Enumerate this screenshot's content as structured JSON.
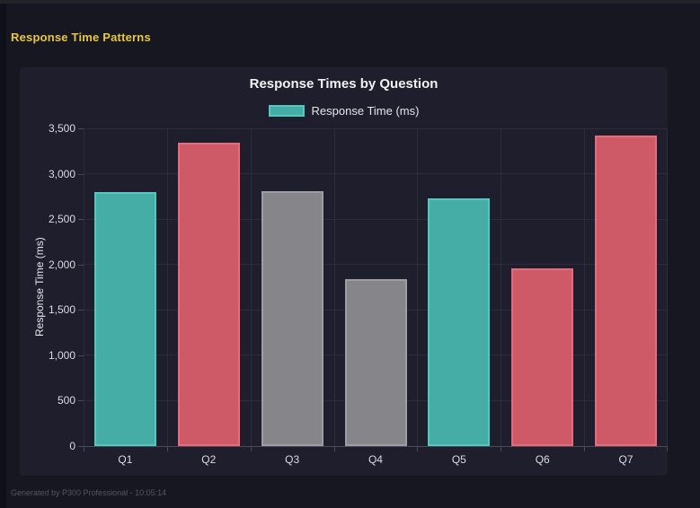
{
  "header": {
    "title": "Response Time Patterns"
  },
  "chart": {
    "title": "Response Times by Question",
    "legend": {
      "label": "Response Time (ms)"
    }
  },
  "chart_data": {
    "type": "bar",
    "title": "Response Times by Question",
    "categories": [
      "Q1",
      "Q2",
      "Q3",
      "Q4",
      "Q5",
      "Q6",
      "Q7"
    ],
    "series": [
      {
        "name": "Response Time (ms)",
        "values": [
          2800,
          3340,
          2810,
          1840,
          2730,
          1960,
          3420
        ]
      }
    ],
    "xlabel": "",
    "ylabel": "Response Time (ms)",
    "ylim": [
      0,
      3500
    ],
    "ytick_step": 500,
    "ytick_labels": [
      "0",
      "500",
      "1,000",
      "1,500",
      "2,000",
      "2,500",
      "3,000",
      "3,500"
    ],
    "grid": true,
    "legend_position": "top",
    "legend_swatch": {
      "fill": "#45aca6",
      "border": "#54c7bf"
    },
    "bar_colors": [
      {
        "name": "teal",
        "fill": "#45aca6",
        "border": "#54c7bf"
      },
      {
        "name": "red",
        "fill": "#cd5a66",
        "border": "#e96a7a"
      },
      {
        "name": "gray",
        "fill": "#85858a",
        "border": "#9d9da3"
      },
      {
        "name": "gray",
        "fill": "#85858a",
        "border": "#9d9da3"
      },
      {
        "name": "teal",
        "fill": "#45aca6",
        "border": "#54c7bf"
      },
      {
        "name": "red",
        "fill": "#cd5a66",
        "border": "#e96a7a"
      },
      {
        "name": "red",
        "fill": "#cd5a66",
        "border": "#e96a7a"
      }
    ]
  },
  "colors": {
    "page_bg": "#171721",
    "panel_bg": "#1e1e2d",
    "accent_yellow": "#e7c83a",
    "grid": "#2c2c3c",
    "axis": "#4a4a58"
  },
  "footer": {
    "text": "Generated by P300 Professional - 10:05:14"
  }
}
